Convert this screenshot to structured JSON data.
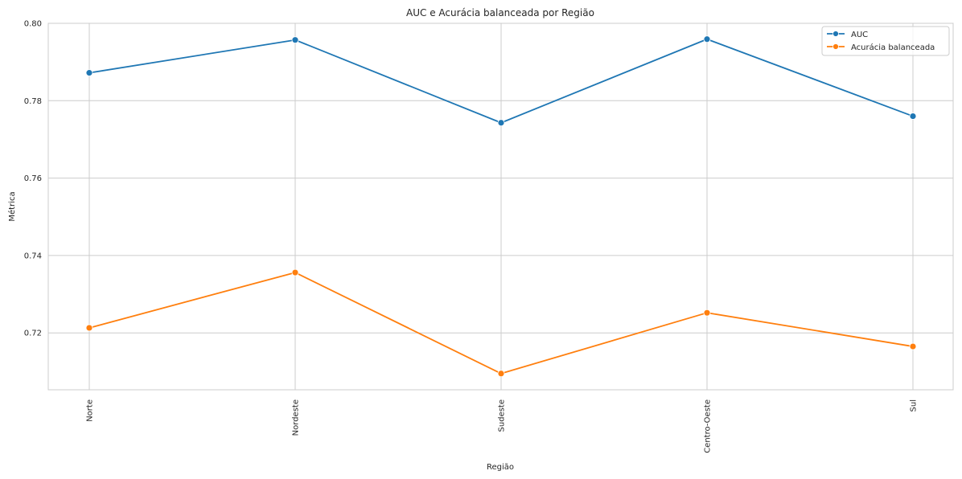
{
  "chart_data": {
    "type": "line",
    "title": "AUC e Acurácia balanceada por Região",
    "xlabel": "Região",
    "ylabel": "Métrica",
    "categories": [
      "Norte",
      "Nordeste",
      "Sudeste",
      "Centro-Oeste",
      "Sul"
    ],
    "ylim": [
      0.7053,
      0.8
    ],
    "yticks": [
      "0.72",
      "0.74",
      "0.76",
      "0.78",
      "0.80"
    ],
    "ytick_values": [
      0.72,
      0.74,
      0.76,
      0.78,
      0.8
    ],
    "grid": true,
    "legend_position": "top-right",
    "series": [
      {
        "name": "AUC",
        "color": "#1f77b4",
        "values": [
          0.7872,
          0.7957,
          0.7743,
          0.7959,
          0.776
        ]
      },
      {
        "name": "Acurácia balanceada",
        "color": "#ff7f0e",
        "values": [
          0.7213,
          0.7356,
          0.7095,
          0.7252,
          0.7165
        ]
      }
    ]
  }
}
